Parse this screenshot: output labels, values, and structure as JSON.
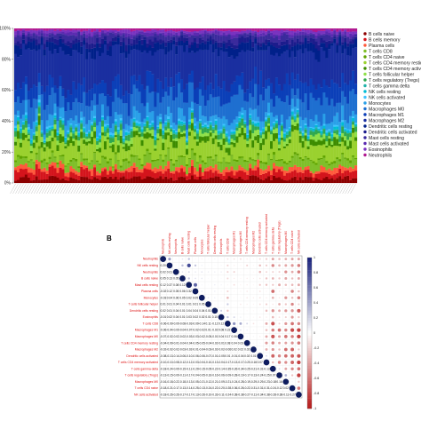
{
  "panel_b_label": "B",
  "chart_data": [
    {
      "type": "bar",
      "stacked": true,
      "title": "",
      "xlabel": "",
      "ylabel": "",
      "ylim": [
        0,
        1
      ],
      "y_tick_labels": [
        "0%",
        "20%",
        "40%",
        "60%",
        "80%",
        "100%"
      ],
      "num_samples": 130,
      "legend_position": "right",
      "series": [
        {
          "name": "B cells naive",
          "color": "#8b0000"
        },
        {
          "name": "B cells memory",
          "color": "#d4141c"
        },
        {
          "name": "Plasma cells",
          "color": "#ff5a3c"
        },
        {
          "name": "T cells CD8",
          "color": "#7fbf2a"
        },
        {
          "name": "T cells CD4 naive",
          "color": "#5fa300"
        },
        {
          "name": "T cells CD4 memory resting",
          "color": "#9ad12f"
        },
        {
          "name": "T cells CD4 memory activated",
          "color": "#3d8c00"
        },
        {
          "name": "T cells follicular helper",
          "color": "#8fe04a"
        },
        {
          "name": "T cells regulatory (Tregs)",
          "color": "#2fa84f"
        },
        {
          "name": "T cells gamma delta",
          "color": "#20b2aa"
        },
        {
          "name": "NK cells resting",
          "color": "#00bcd4"
        },
        {
          "name": "NK cells activated",
          "color": "#40c4ff"
        },
        {
          "name": "Monocytes",
          "color": "#29a0e8"
        },
        {
          "name": "Macrophages M0",
          "color": "#1e6fd0"
        },
        {
          "name": "Macrophages M1",
          "color": "#0b3fb8"
        },
        {
          "name": "Macrophages M2",
          "color": "#1a2fa0"
        },
        {
          "name": "Dendritic cells resting",
          "color": "#00208a"
        },
        {
          "name": "Dendritic cells activated",
          "color": "#1c1c8c"
        },
        {
          "name": "Mast cells resting",
          "color": "#3a2a9c"
        },
        {
          "name": "Mast cells activated",
          "color": "#5a2ab0"
        },
        {
          "name": "Eosinophils",
          "color": "#7a32c0"
        },
        {
          "name": "Neutrophils",
          "color": "#b01890"
        }
      ]
    },
    {
      "type": "heatmap",
      "title": "",
      "variables": [
        "Neutrophils",
        "NK cells resting",
        "Neutrophils",
        "B cells naive",
        "Mast cells resting",
        "Plasma cells",
        "Monocytes",
        "T cells follicular helper",
        "Dendritic cells resting",
        "Eosinophils",
        "T cells CD8",
        "Macrophages M1",
        "Macrophages M0",
        "T cells CD4 memory resting",
        "Macrophages M2",
        "Dendritic cells activated",
        "T cells CD4 memory activated",
        "T cells gamma delta",
        "T cells regulatory (Tregs)",
        "Macrophages M0",
        "T cells CD4 naive",
        "NK cells activated"
      ],
      "lower_triangle_values": [
        [],
        [
          0.2
        ],
        [
          0.02,
          0.01
        ],
        [
          0.05,
          0.13,
          0.05
        ],
        [
          0.12,
          0.37,
          0.08,
          0.12
        ],
        [
          -0.02,
          0.12,
          0.05,
          0.06,
          0.32
        ],
        [
          -0.03,
          0.04,
          0.06,
          0.05,
          0.02,
          0.05
        ],
        [
          0.01,
          0.01,
          0.04,
          0.01,
          0.01,
          0.01,
          0.05
        ],
        [
          0.02,
          0.01,
          0.04,
          0.01,
          0.04,
          0.04,
          0.04,
          0.01
        ],
        [
          -0.01,
          0.02,
          0.04,
          0.01,
          0.03,
          0.02,
          0.02,
          0.01,
          0.1
        ],
        [
          -0.06,
          -0.09,
          -0.09,
          -0.08,
          -0.03,
          -0.09,
          -0.14,
          0.11,
          -0.12,
          0.12
        ],
        [
          -0.06,
          -0.04,
          -0.09,
          -0.04,
          -0.07,
          -0.02,
          -0.02,
          0.01,
          -0.02,
          0.08,
          0.22
        ],
        [
          -0.07,
          -0.02,
          -0.02,
          -0.02,
          -0.03,
          -0.03,
          -0.02,
          -0.05,
          -0.01,
          0.04,
          0.17,
          0.06
        ],
        [
          -0.04,
          -0.09,
          -0.01,
          -0.04,
          -0.04,
          -0.05,
          -0.05,
          -0.04,
          -0.02,
          -0.01,
          0.08,
          0.04,
          0.03
        ],
        [
          -0.02,
          -0.02,
          -0.02,
          -0.03,
          -0.02,
          -0.01,
          -0.04,
          -0.03,
          -0.02,
          -0.02,
          -0.06,
          0.02,
          0.02,
          0.02
        ],
        [
          -0.08,
          -0.13,
          -0.14,
          -0.06,
          -0.1,
          -0.06,
          -0.06,
          -0.07,
          -0.01,
          -0.05,
          0.01,
          -0.01,
          -0.04,
          0.02,
          0.01
        ],
        [
          -0.1,
          -0.1,
          -0.08,
          -0.12,
          -0.12,
          -0.03,
          -0.04,
          -0.1,
          -0.13,
          -0.04,
          -0.17,
          -0.13,
          -0.17,
          -0.2,
          -0.16,
          0.07
        ],
        [
          -0.18,
          -0.24,
          -0.09,
          -0.15,
          -0.11,
          -0.29,
          -0.15,
          -0.05,
          -0.22,
          -0.14,
          -0.35,
          -0.26,
          -0.34,
          -0.25,
          -0.21,
          -0.31,
          -0.13
        ],
        [
          -0.13,
          -0.15,
          -0.09,
          -0.11,
          -0.17,
          -0.04,
          -0.05,
          -0.16,
          -0.16,
          -0.06,
          -0.09,
          -0.28,
          -0.19,
          -0.17,
          -0.13,
          -0.24,
          -0.25,
          0.07
        ],
        [
          -0.16,
          -0.18,
          -0.22,
          -0.18,
          -0.13,
          -0.05,
          -0.21,
          -0.12,
          -0.21,
          -0.09,
          -0.21,
          -0.24,
          -0.28,
          -0.19,
          -0.29,
          -0.29,
          -0.23,
          -0.18,
          0.16
        ],
        [
          -0.18,
          -0.21,
          -0.17,
          -0.13,
          -0.14,
          -0.25,
          -0.13,
          -0.24,
          -0.22,
          -0.2,
          -0.28,
          -0.36,
          -0.26,
          -0.22,
          -0.31,
          -0.31,
          -0.31,
          -0.24,
          -0.12,
          0.02
        ],
        [
          -0.18,
          -0.26,
          -0.26,
          -0.17,
          -0.17,
          -0.13,
          -0.26,
          -0.1,
          -0.33,
          -0.11,
          -0.24,
          -0.38,
          -0.38,
          -0.27,
          -0.11,
          -0.34,
          -0.38,
          -0.28,
          -0.38,
          -0.11,
          -0.27
        ]
      ],
      "colorbar_range": [
        -1,
        1
      ],
      "colorbar_ticks": [
        "1",
        "0.8",
        "0.6",
        "0.4",
        "0.2",
        "0",
        "-0.2",
        "-0.4",
        "-0.6",
        "-0.8",
        "-1"
      ]
    }
  ],
  "colors": {
    "positive": "#1a237e",
    "negative": "#b71c1c",
    "diagonal": "#0d1b5e"
  }
}
